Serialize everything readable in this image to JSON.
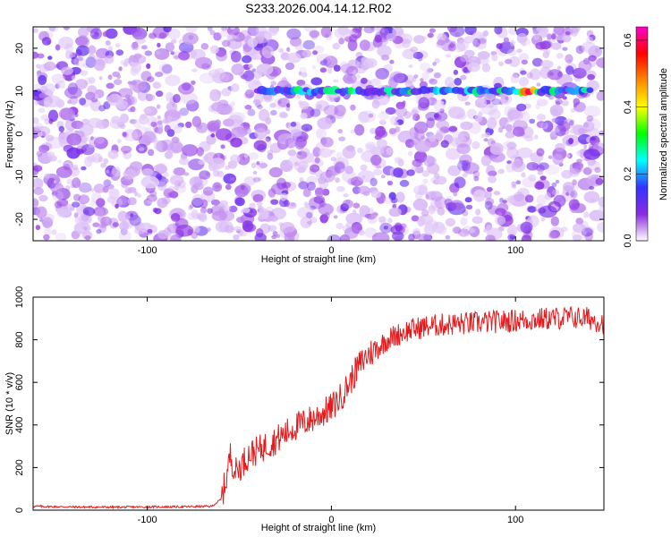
{
  "title": "S233.2026.004.14.12.R02",
  "chart_data": [
    {
      "type": "heatmap",
      "xlabel": "Height of straight line (km)",
      "ylabel": "Frequency (Hz)",
      "xlim": [
        -162,
        148
      ],
      "ylim": [
        -25,
        25
      ],
      "xticks": [
        -100,
        0,
        100
      ],
      "yticks": [
        -20,
        -10,
        0,
        10,
        20
      ],
      "colorbar": {
        "label": "Normalized spectral amplitude",
        "range": [
          0.0,
          0.64
        ],
        "ticks": [
          0.0,
          0.2,
          0.4,
          0.6
        ],
        "tick_labels": [
          "0.0",
          "0.2",
          "0.4",
          "0.6"
        ],
        "colormap": [
          "#ffffff",
          "#8a2be2",
          "#3333ff",
          "#00ffff",
          "#00ff00",
          "#ffff00",
          "#ff8800",
          "#ff0000",
          "#ff00cc"
        ]
      },
      "features": [
        {
          "label": "",
          "y": 10,
          "x_range": [
            -40,
            142
          ],
          "peak_amplitude": 0.62,
          "peak_x": 107
        }
      ]
    },
    {
      "type": "line",
      "xlabel": "Height of straight line (km)",
      "ylabel": "SNR (10 * v/v)",
      "xlim": [
        -162,
        148
      ],
      "ylim": [
        0,
        1000
      ],
      "xticks": [
        -100,
        0,
        100
      ],
      "yticks": [
        0,
        200,
        400,
        600,
        800,
        1000
      ],
      "series": [
        {
          "color": "#e41a1c",
          "x": [
            -162,
            -140,
            -120,
            -100,
            -80,
            -65,
            -60,
            -57,
            -55,
            -52,
            -50,
            -45,
            -40,
            -30,
            -20,
            -10,
            0,
            5,
            10,
            15,
            20,
            25,
            30,
            40,
            50,
            60,
            70,
            80,
            90,
            100,
            110,
            120,
            130,
            140,
            148
          ],
          "y": [
            18,
            15,
            14,
            15,
            16,
            18,
            50,
            150,
            260,
            180,
            200,
            260,
            280,
            330,
            390,
            430,
            480,
            530,
            600,
            680,
            730,
            760,
            800,
            840,
            860,
            870,
            875,
            880,
            885,
            890,
            895,
            900,
            905,
            900,
            880
          ]
        }
      ]
    }
  ]
}
